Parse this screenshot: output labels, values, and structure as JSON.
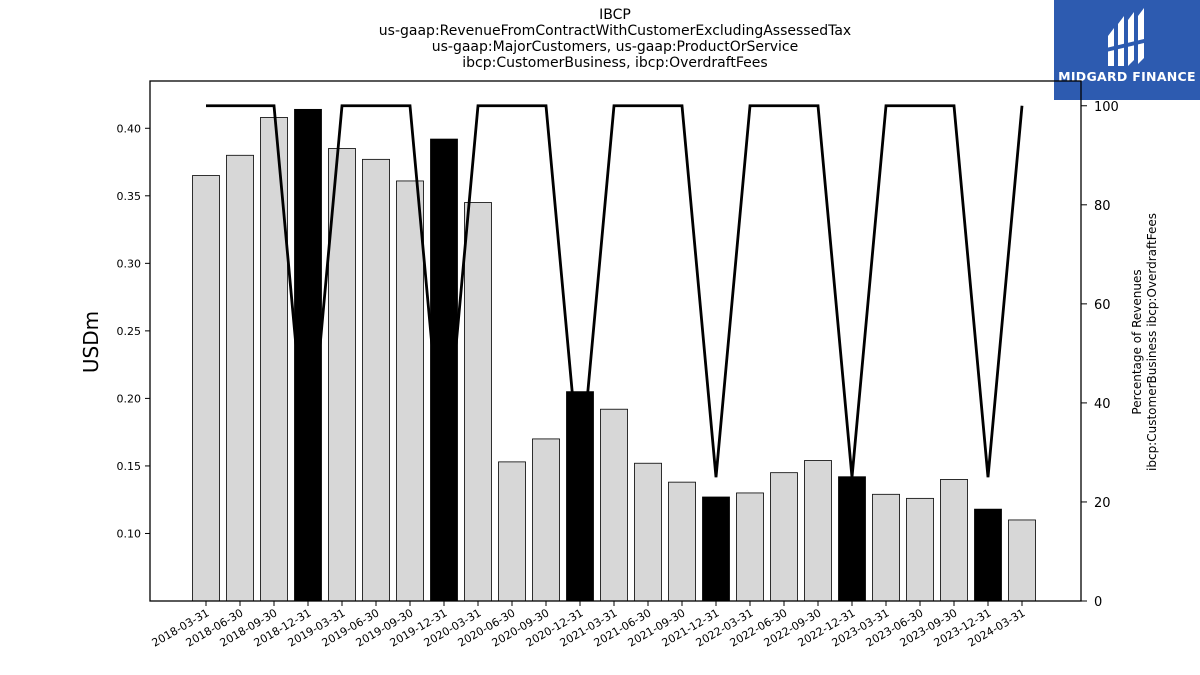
{
  "brand": {
    "name": "MIDGARD FINANCE",
    "accent": "#2d5bb0"
  },
  "chart_data": {
    "type": "bar",
    "title_lines": [
      "IBCP",
      "us-gaap:RevenueFromContractWithCustomerExcludingAssessedTax",
      "us-gaap:MajorCustomers, us-gaap:ProductOrService",
      "ibcp:CustomerBusiness, ibcp:OverdraftFees"
    ],
    "ylabel": "USDm",
    "ylabel_right": [
      "Percentage of Revenues",
      "ibcp:CustomerBusiness ibcp:OverdraftFees"
    ],
    "ylim": [
      0.05,
      0.435
    ],
    "yticks": [
      0.1,
      0.15,
      0.2,
      0.25,
      0.3,
      0.35,
      0.4
    ],
    "ylim_right": [
      0,
      105
    ],
    "yticks_right": [
      0,
      20,
      40,
      60,
      80,
      100
    ],
    "categories": [
      "2018-03-31",
      "2018-06-30",
      "2018-09-30",
      "2018-12-31",
      "2019-03-31",
      "2019-06-30",
      "2019-09-30",
      "2019-12-31",
      "2020-03-31",
      "2020-06-30",
      "2020-09-30",
      "2020-12-31",
      "2021-03-31",
      "2021-06-30",
      "2021-09-30",
      "2021-12-31",
      "2022-03-31",
      "2022-06-30",
      "2022-09-30",
      "2022-12-31",
      "2023-03-31",
      "2023-06-30",
      "2023-09-30",
      "2023-12-31",
      "2024-03-31"
    ],
    "series": [
      {
        "values": [
          0.365,
          0.38,
          0.408,
          0.414,
          0.385,
          0.377,
          0.361,
          0.392,
          0.345,
          0.153,
          0.17,
          0.205,
          0.192,
          0.152,
          0.138,
          0.127,
          0.13,
          0.145,
          0.154,
          0.142,
          0.129,
          0.126,
          0.14,
          0.118,
          0.11
        ]
      },
      {
        "axis": "right",
        "values": [
          100,
          100,
          100,
          25,
          100,
          100,
          100,
          25,
          100,
          100,
          100,
          25,
          100,
          100,
          100,
          25,
          100,
          100,
          100,
          25,
          100,
          100,
          100,
          25,
          100
        ]
      }
    ],
    "highlighted": [
      3,
      7,
      11,
      15,
      19,
      23
    ],
    "colors": {
      "bar": "#d7d7d7",
      "highlight": "#000000",
      "line": "#000000",
      "edge": "#000000"
    },
    "grid": false
  }
}
